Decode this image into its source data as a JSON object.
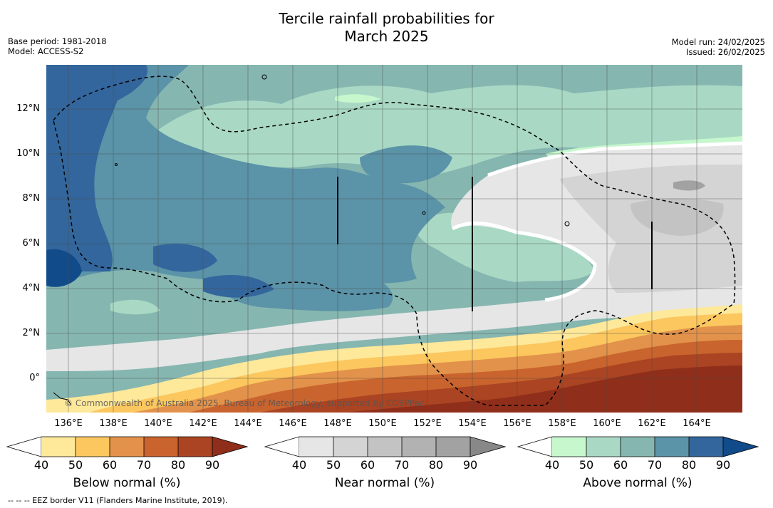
{
  "title": {
    "line1": "Tercile rainfall probabilities for",
    "line2": "March 2025"
  },
  "meta": {
    "base_period": "Base period: 1981-2018",
    "model": "Model: ACCESS-S2",
    "model_run": "Model run: 24/02/2025",
    "issued": "Issued: 26/02/2025"
  },
  "map": {
    "lat_labels": [
      "12°N",
      "10°N",
      "8°N",
      "6°N",
      "4°N",
      "2°N",
      "0°"
    ],
    "lon_labels": [
      "136°E",
      "138°E",
      "140°E",
      "142°E",
      "144°E",
      "146°E",
      "148°E",
      "150°E",
      "152°E",
      "154°E",
      "156°E",
      "158°E",
      "160°E",
      "162°E",
      "164°E"
    ],
    "copyright": "© Commonwealth of Australia 2025, Bureau of Meteorology, supported by COSPPac"
  },
  "colorbars": [
    {
      "title": "Below normal (%)",
      "ticks": [
        "40",
        "50",
        "60",
        "70",
        "80",
        "90"
      ],
      "colors": [
        "#ffffff",
        "#fee89a",
        "#fbc75e",
        "#e2924a",
        "#c9642f",
        "#ab4422",
        "#8f2e1a"
      ]
    },
    {
      "title": "Near normal (%)",
      "ticks": [
        "40",
        "50",
        "60",
        "70",
        "80",
        "90"
      ],
      "colors": [
        "#ffffff",
        "#e6e6e6",
        "#d4d4d4",
        "#c3c3c3",
        "#b2b2b2",
        "#a2a2a2",
        "#888888"
      ]
    },
    {
      "title": "Above normal (%)",
      "ticks": [
        "40",
        "50",
        "60",
        "70",
        "80",
        "90"
      ],
      "colors": [
        "#ffffff",
        "#c6f7cd",
        "#a9d9c4",
        "#86b6b0",
        "#5b93a8",
        "#33669c",
        "#114b8a"
      ]
    }
  ],
  "footnote": "--  --  -- EEZ border V11 (Flanders Marine Institute, 2019)."
}
